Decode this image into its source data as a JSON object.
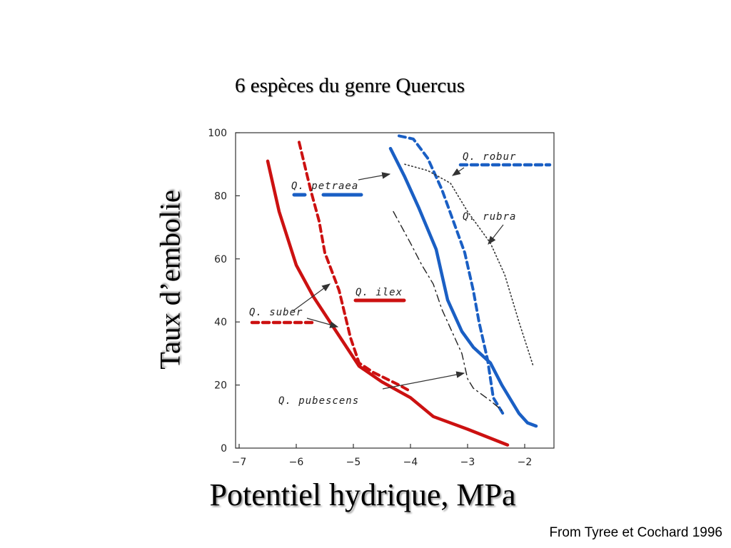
{
  "slide": {
    "title": "6 espèces du genre Quercus",
    "source": "From Tyree et Cochard 1996"
  },
  "chart_data": {
    "type": "line",
    "title": "6 espèces du genre Quercus",
    "xlabel": "Potentiel hydrique, MPa",
    "ylabel": "Taux d’embolie",
    "xlim": [
      -7,
      -1.7
    ],
    "ylim": [
      0,
      100
    ],
    "xticks": [
      -7,
      -6,
      -5,
      -4,
      -3,
      -2
    ],
    "yticks": [
      0,
      20,
      40,
      60,
      80,
      100
    ],
    "grid": false,
    "series": [
      {
        "name": "Q. ilex",
        "color": "#cc1111",
        "style": "solid",
        "x": [
          -6.5,
          -6.3,
          -6.0,
          -5.7,
          -5.3,
          -4.9,
          -4.5,
          -4.0,
          -3.6,
          -3.0,
          -2.3
        ],
        "y": [
          91,
          75,
          58,
          48,
          37,
          26,
          21,
          16,
          10,
          6,
          1
        ]
      },
      {
        "name": "Q. suber",
        "color": "#cc1111",
        "style": "dashed",
        "x": [
          -5.95,
          -5.75,
          -5.6,
          -5.5,
          -5.25,
          -5.05,
          -4.9,
          -4.65,
          -4.2,
          -4.0
        ],
        "y": [
          97,
          82,
          72,
          62,
          50,
          35,
          27,
          24,
          20,
          18
        ]
      },
      {
        "name": "Q. petraea",
        "color": "#1a5fc4",
        "style": "solid",
        "x": [
          -4.35,
          -4.1,
          -3.85,
          -3.55,
          -3.35,
          -3.1,
          -2.9,
          -2.6,
          -2.4,
          -2.1,
          -1.95,
          -1.8
        ],
        "y": [
          95,
          86,
          76,
          63,
          47,
          37,
          32,
          27,
          20,
          11,
          8,
          7
        ]
      },
      {
        "name": "Q. robur",
        "color": "#1a5fc4",
        "style": "dashed",
        "x": [
          -4.2,
          -3.95,
          -3.7,
          -3.45,
          -3.25,
          -3.05,
          -2.9,
          -2.8,
          -2.65,
          -2.55,
          -2.35
        ],
        "y": [
          99,
          98,
          92,
          82,
          72,
          62,
          50,
          40,
          28,
          16,
          10
        ]
      },
      {
        "name": "Q. rubra",
        "color": "#333333",
        "style": "dotted",
        "x": [
          -4.1,
          -3.7,
          -3.3,
          -3.0,
          -2.6,
          -2.35,
          -2.1,
          -1.85
        ],
        "y": [
          90,
          88,
          84,
          75,
          65,
          55,
          40,
          26
        ]
      },
      {
        "name": "Q. pubescens",
        "color": "#222222",
        "style": "dashdot",
        "x": [
          -4.3,
          -4.0,
          -3.8,
          -3.6,
          -3.45,
          -3.25,
          -3.1,
          -3.0,
          -2.9,
          -2.6,
          -2.4
        ],
        "y": [
          75,
          65,
          58,
          52,
          44,
          36,
          30,
          22,
          19,
          15,
          12
        ]
      }
    ],
    "annotations": [
      "Q. robur",
      "Q. petraea",
      "Q. rubra",
      "Q. ilex",
      "Q. suber",
      "Q. pubescens"
    ]
  }
}
